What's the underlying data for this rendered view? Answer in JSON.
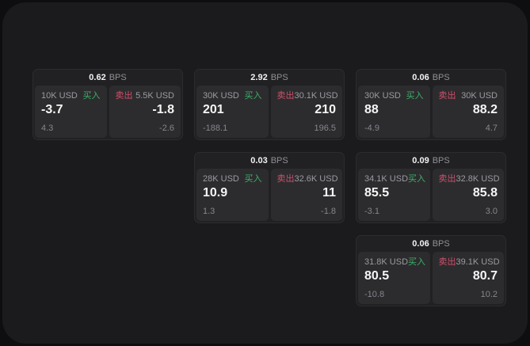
{
  "labels": {
    "buy": "买入",
    "sell": "卖出",
    "bps_unit": "BPS"
  },
  "colors": {
    "buy_green": "#3fae6a",
    "sell_red": "#d04f6c",
    "backdrop": "#0e0e10",
    "panel_bg": "#1b1b1d",
    "card_bg": "#212123",
    "pane_bg": "#2c2c2e",
    "value_white": "#f5f5f6",
    "label_gray": "#9a9aa1"
  },
  "cards": [
    {
      "spread_bps": "0.62",
      "buy": {
        "notional": "10K USD",
        "price": "-3.7",
        "delta": "4.3"
      },
      "sell": {
        "notional": "5.5K USD",
        "price": "-1.8",
        "delta": "-2.6"
      }
    },
    {
      "spread_bps": "2.92",
      "buy": {
        "notional": "30K USD",
        "price": "201",
        "delta": "-188.1"
      },
      "sell": {
        "notional": "30.1K USD",
        "price": "210",
        "delta": "196.5"
      }
    },
    {
      "spread_bps": "0.06",
      "buy": {
        "notional": "30K USD",
        "price": "88",
        "delta": "-4.9"
      },
      "sell": {
        "notional": "30K USD",
        "price": "88.2",
        "delta": "4.7"
      }
    },
    {
      "spread_bps": "0.03",
      "buy": {
        "notional": "28K USD",
        "price": "10.9",
        "delta": "1.3"
      },
      "sell": {
        "notional": "32.6K USD",
        "price": "11",
        "delta": "-1.8"
      }
    },
    {
      "spread_bps": "0.09",
      "buy": {
        "notional": "34.1K USD",
        "price": "85.5",
        "delta": "-3.1"
      },
      "sell": {
        "notional": "32.8K USD",
        "price": "85.8",
        "delta": "3.0"
      }
    },
    {
      "spread_bps": "0.06",
      "buy": {
        "notional": "31.8K USD",
        "price": "80.5",
        "delta": "-10.8"
      },
      "sell": {
        "notional": "39.1K USD",
        "price": "80.7",
        "delta": "10.2"
      }
    }
  ]
}
